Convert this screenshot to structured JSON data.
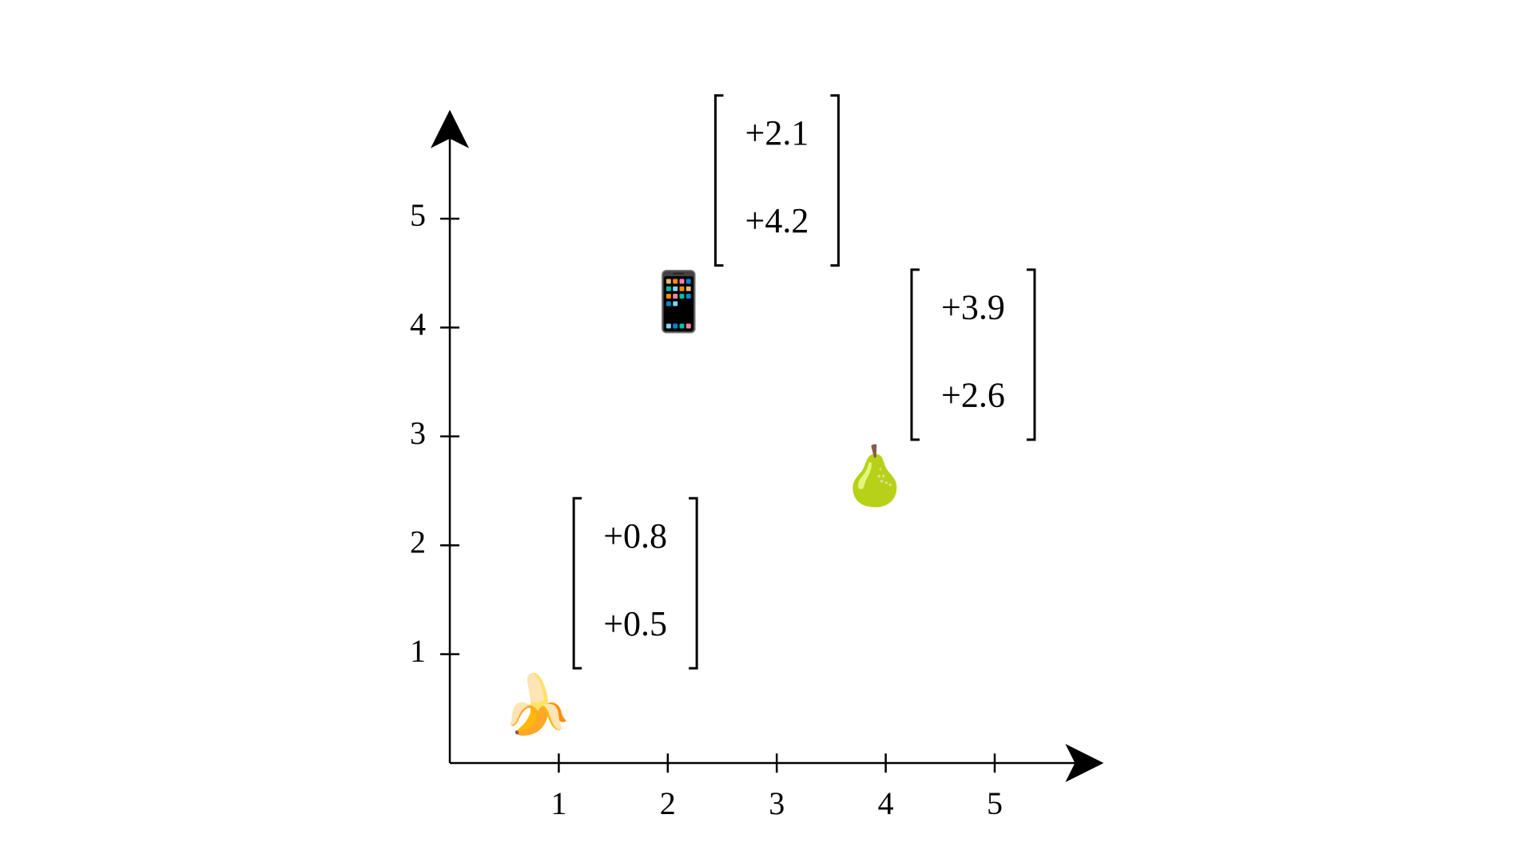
{
  "chart_data": {
    "type": "scatter",
    "x": [
      0.8,
      2.1,
      3.9
    ],
    "values": [
      0.5,
      4.2,
      2.6
    ],
    "x_labels": [
      "+0.8",
      "+2.1",
      "+3.9"
    ],
    "value_labels": [
      "+0.5",
      "+4.2",
      "+2.6"
    ],
    "markers": [
      "🍌",
      "📱",
      "🍐"
    ],
    "xlim": [
      0,
      6
    ],
    "ylim": [
      0,
      6
    ],
    "xticks": [
      1,
      2,
      3,
      4,
      5
    ],
    "yticks": [
      1,
      2,
      3,
      4,
      5
    ],
    "color": "#000000"
  }
}
